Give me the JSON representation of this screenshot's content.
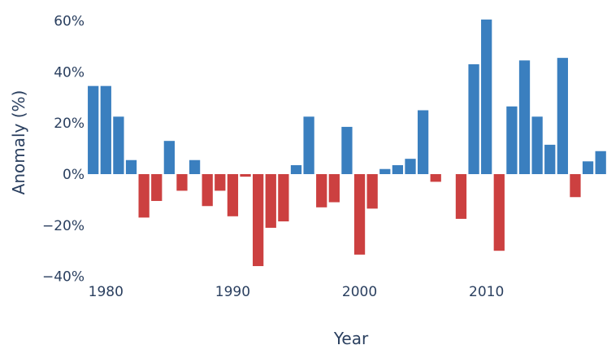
{
  "chart_data": {
    "type": "bar",
    "title": "",
    "xlabel": "Year",
    "ylabel": "Anomaly (%)",
    "ylim": [
      -40,
      62
    ],
    "xlim": [
      1978.7,
      2019.5
    ],
    "y_ticks": [
      -40,
      -20,
      0,
      20,
      40,
      60
    ],
    "y_tick_labels": [
      "−40%",
      "−20%",
      "0%",
      "20%",
      "40%",
      "60%"
    ],
    "x_ticks": [
      1980,
      1990,
      2000,
      2010
    ],
    "x_tick_labels": [
      "1980",
      "1990",
      "2000",
      "2010"
    ],
    "grid": false,
    "legend": false,
    "positive_color": "#3a7fbf",
    "negative_color": "#cc4040",
    "years": [
      1979,
      1980,
      1981,
      1982,
      1983,
      1984,
      1985,
      1986,
      1987,
      1988,
      1989,
      1990,
      1991,
      1992,
      1993,
      1994,
      1995,
      1996,
      1997,
      1998,
      1999,
      2000,
      2001,
      2002,
      2003,
      2004,
      2005,
      2006,
      2007,
      2008,
      2009,
      2010,
      2011,
      2012,
      2013,
      2014,
      2015,
      2016,
      2017,
      2018,
      2019
    ],
    "values": [
      34.5,
      34.5,
      22.5,
      5.5,
      -17,
      -10.5,
      13,
      -6.5,
      5.5,
      -12.5,
      -6.5,
      -16.5,
      -1,
      -36,
      -21,
      -18.5,
      3.5,
      22.5,
      -13,
      -11,
      18.5,
      -31.5,
      -13.5,
      2,
      3.5,
      6,
      25,
      -3,
      0,
      -17.5,
      43,
      60.5,
      -30,
      26.5,
      44.5,
      22.5,
      11.5,
      45.5,
      -9,
      5,
      9
    ]
  }
}
